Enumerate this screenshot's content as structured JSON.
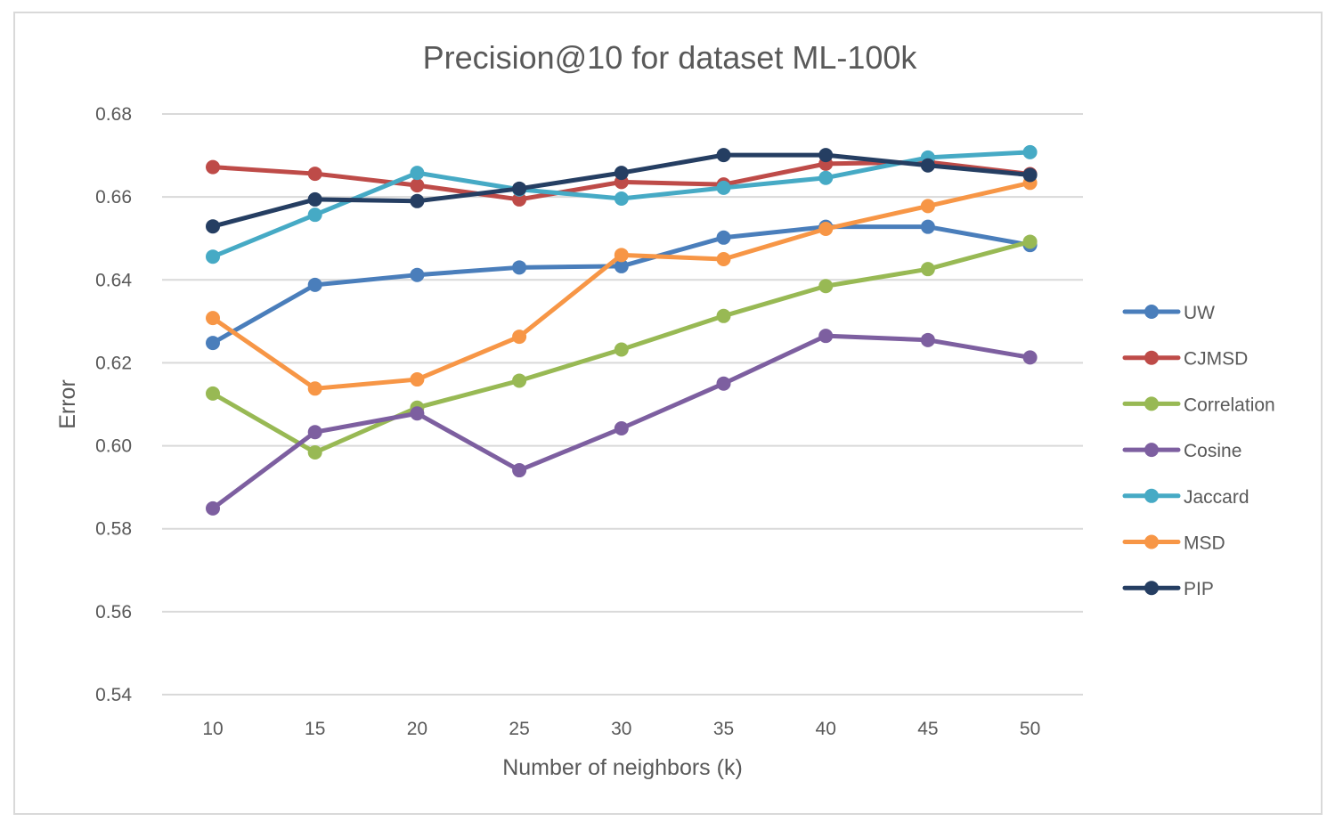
{
  "chart_data": {
    "type": "line",
    "title": "Precision@10 for dataset ML-100k",
    "xlabel": "Number of neighbors (k)",
    "ylabel": "Error",
    "categories": [
      "10",
      "15",
      "20",
      "25",
      "30",
      "35",
      "40",
      "45",
      "50"
    ],
    "ylim": [
      0.54,
      0.68
    ],
    "yticks": [
      "0.54",
      "0.56",
      "0.58",
      "0.60",
      "0.62",
      "0.64",
      "0.66",
      "0.68"
    ],
    "grid": true,
    "legend_position": "right",
    "series": [
      {
        "name": "UW",
        "color": "#4a7ebb",
        "values": [
          0.6248,
          0.6388,
          0.6412,
          0.643,
          0.6433,
          0.6502,
          0.6528,
          0.6528,
          0.6484
        ]
      },
      {
        "name": "CJMSD",
        "color": "#be4b48",
        "values": [
          0.6672,
          0.6656,
          0.6628,
          0.6594,
          0.6636,
          0.663,
          0.668,
          0.6684,
          0.6655
        ]
      },
      {
        "name": "Correlation",
        "color": "#98b954",
        "values": [
          0.6126,
          0.5984,
          0.6092,
          0.6157,
          0.6232,
          0.6313,
          0.6385,
          0.6426,
          0.6492
        ]
      },
      {
        "name": "Cosine",
        "color": "#7d5fa0",
        "values": [
          0.5849,
          0.6033,
          0.6078,
          0.5941,
          0.6042,
          0.615,
          0.6265,
          0.6255,
          0.6213
        ]
      },
      {
        "name": "Jaccard",
        "color": "#46aac5",
        "values": [
          0.6456,
          0.6557,
          0.6658,
          0.6618,
          0.6596,
          0.6622,
          0.6646,
          0.6695,
          0.6708
        ]
      },
      {
        "name": "MSD",
        "color": "#f79646",
        "values": [
          0.6308,
          0.6138,
          0.616,
          0.6263,
          0.646,
          0.645,
          0.6523,
          0.6578,
          0.6634
        ]
      },
      {
        "name": "PIP",
        "color": "#253e62",
        "values": [
          0.6529,
          0.6594,
          0.659,
          0.662,
          0.6658,
          0.6701,
          0.6701,
          0.6676,
          0.6653
        ]
      }
    ]
  }
}
